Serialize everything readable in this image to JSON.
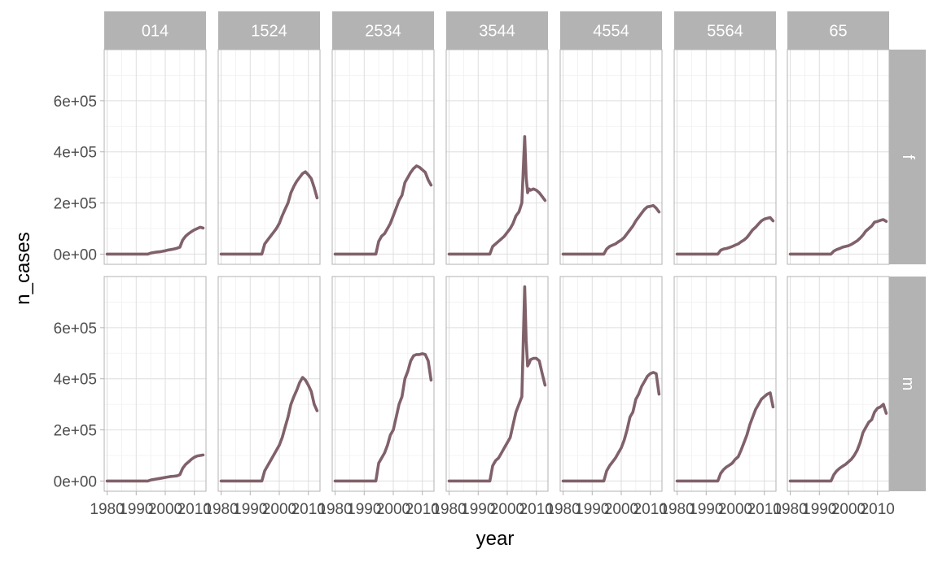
{
  "chart_data": {
    "type": "line",
    "xlabel": "year",
    "ylabel": "n_cases",
    "x_ticks": [
      1980,
      1990,
      2000,
      2010
    ],
    "x_tick_labels": [
      "1980",
      "1990",
      "2000",
      "2010"
    ],
    "y_ticks": [
      0,
      200000,
      400000,
      600000
    ],
    "y_tick_labels": [
      "0e+00",
      "2e+05",
      "4e+05",
      "6e+05"
    ],
    "xlim": [
      1979,
      2014
    ],
    "ylim": [
      -40000,
      800000
    ],
    "grid": true,
    "facet_cols": [
      "014",
      "1524",
      "2534",
      "3544",
      "4554",
      "5564",
      "65"
    ],
    "facet_rows": [
      "f",
      "m"
    ],
    "line_color": "#80616a",
    "strip_color": "#b3b3b3",
    "panels": [
      {
        "sex": "f",
        "age": "014",
        "x": [
          1980,
          1985,
          1994,
          1995,
          1996,
          1997,
          1998,
          1999,
          2000,
          2001,
          2002,
          2003,
          2004,
          2005,
          2006,
          2007,
          2008,
          2009,
          2010,
          2011,
          2012,
          2013
        ],
        "y": [
          0,
          0,
          0,
          4000,
          6000,
          8000,
          9000,
          11000,
          13000,
          16000,
          18000,
          20000,
          23000,
          27000,
          55000,
          70000,
          80000,
          88000,
          95000,
          100000,
          105000,
          102000
        ]
      },
      {
        "sex": "f",
        "age": "1524",
        "x": [
          1980,
          1985,
          1994,
          1995,
          1996,
          1997,
          1998,
          1999,
          2000,
          2001,
          2002,
          2003,
          2004,
          2005,
          2006,
          2007,
          2008,
          2009,
          2010,
          2011,
          2012,
          2013
        ],
        "y": [
          0,
          0,
          0,
          40000,
          55000,
          70000,
          85000,
          100000,
          120000,
          150000,
          175000,
          200000,
          240000,
          265000,
          285000,
          300000,
          315000,
          322000,
          310000,
          295000,
          260000,
          220000
        ]
      },
      {
        "sex": "f",
        "age": "2534",
        "x": [
          1980,
          1985,
          1994,
          1995,
          1996,
          1997,
          1998,
          1999,
          2000,
          2001,
          2002,
          2003,
          2004,
          2005,
          2006,
          2007,
          2008,
          2009,
          2010,
          2011,
          2012,
          2013
        ],
        "y": [
          0,
          0,
          0,
          50000,
          70000,
          80000,
          100000,
          120000,
          150000,
          180000,
          210000,
          230000,
          280000,
          300000,
          320000,
          335000,
          345000,
          340000,
          330000,
          320000,
          290000,
          270000
        ]
      },
      {
        "sex": "f",
        "age": "3544",
        "x": [
          1980,
          1985,
          1994,
          1995,
          1996,
          1997,
          1998,
          1999,
          2000,
          2001,
          2002,
          2003,
          2004,
          2005,
          2006,
          2006.5,
          2007,
          2007.5,
          2008,
          2009,
          2010,
          2011,
          2012,
          2013
        ],
        "y": [
          0,
          0,
          0,
          30000,
          40000,
          50000,
          60000,
          70000,
          85000,
          100000,
          120000,
          150000,
          165000,
          200000,
          460000,
          300000,
          240000,
          255000,
          250000,
          255000,
          250000,
          240000,
          225000,
          210000
        ]
      },
      {
        "sex": "f",
        "age": "4554",
        "x": [
          1980,
          1985,
          1994,
          1995,
          1996,
          1997,
          1998,
          1999,
          2000,
          2001,
          2002,
          2003,
          2004,
          2005,
          2006,
          2007,
          2008,
          2009,
          2010,
          2011,
          2012,
          2013
        ],
        "y": [
          0,
          0,
          0,
          20000,
          30000,
          35000,
          40000,
          48000,
          55000,
          65000,
          80000,
          95000,
          110000,
          130000,
          145000,
          160000,
          175000,
          185000,
          187000,
          190000,
          180000,
          165000
        ]
      },
      {
        "sex": "f",
        "age": "5564",
        "x": [
          1980,
          1985,
          1994,
          1995,
          1996,
          1997,
          1998,
          1999,
          2000,
          2001,
          2002,
          2003,
          2004,
          2005,
          2006,
          2007,
          2008,
          2009,
          2010,
          2011,
          2012,
          2013
        ],
        "y": [
          0,
          0,
          0,
          15000,
          20000,
          22000,
          26000,
          30000,
          35000,
          40000,
          48000,
          55000,
          65000,
          80000,
          95000,
          105000,
          118000,
          130000,
          137000,
          140000,
          143000,
          130000
        ]
      },
      {
        "sex": "f",
        "age": "65",
        "x": [
          1980,
          1985,
          1994,
          1995,
          1996,
          1997,
          1998,
          1999,
          2000,
          2001,
          2002,
          2003,
          2004,
          2005,
          2006,
          2007,
          2008,
          2009,
          2010,
          2011,
          2012,
          2013
        ],
        "y": [
          0,
          0,
          0,
          12000,
          18000,
          22000,
          27000,
          30000,
          33000,
          38000,
          45000,
          52000,
          62000,
          75000,
          90000,
          100000,
          110000,
          125000,
          128000,
          132000,
          135000,
          128000
        ]
      },
      {
        "sex": "m",
        "age": "014",
        "x": [
          1980,
          1985,
          1994,
          1995,
          1996,
          1997,
          1998,
          1999,
          2000,
          2001,
          2002,
          2003,
          2004,
          2005,
          2006,
          2007,
          2008,
          2009,
          2010,
          2011,
          2012,
          2013
        ],
        "y": [
          0,
          0,
          0,
          4000,
          6000,
          8000,
          10000,
          12000,
          14000,
          16000,
          18000,
          19000,
          20000,
          25000,
          50000,
          65000,
          75000,
          85000,
          93000,
          98000,
          100000,
          102000
        ]
      },
      {
        "sex": "m",
        "age": "1524",
        "x": [
          1980,
          1985,
          1994,
          1995,
          1996,
          1997,
          1998,
          1999,
          2000,
          2001,
          2002,
          2003,
          2004,
          2005,
          2006,
          2007,
          2008,
          2009,
          2010,
          2011,
          2012,
          2013
        ],
        "y": [
          0,
          0,
          0,
          40000,
          60000,
          80000,
          100000,
          120000,
          140000,
          170000,
          210000,
          250000,
          300000,
          330000,
          355000,
          385000,
          405000,
          395000,
          375000,
          350000,
          300000,
          275000
        ]
      },
      {
        "sex": "m",
        "age": "2534",
        "x": [
          1980,
          1985,
          1994,
          1995,
          1996,
          1997,
          1998,
          1999,
          2000,
          2001,
          2002,
          2003,
          2004,
          2005,
          2006,
          2007,
          2008,
          2009,
          2010,
          2011,
          2012,
          2013
        ],
        "y": [
          0,
          0,
          0,
          70000,
          90000,
          110000,
          140000,
          180000,
          200000,
          250000,
          300000,
          330000,
          400000,
          430000,
          470000,
          490000,
          495000,
          495000,
          498000,
          495000,
          470000,
          395000
        ]
      },
      {
        "sex": "m",
        "age": "3544",
        "x": [
          1980,
          1985,
          1994,
          1995,
          1996,
          1997,
          1998,
          1999,
          2000,
          2001,
          2002,
          2003,
          2004,
          2005,
          2006,
          2006.5,
          2007,
          2007.5,
          2008,
          2009,
          2010,
          2011,
          2012,
          2013
        ],
        "y": [
          0,
          0,
          0,
          60000,
          80000,
          90000,
          110000,
          130000,
          150000,
          170000,
          220000,
          270000,
          300000,
          330000,
          760000,
          550000,
          450000,
          460000,
          475000,
          480000,
          480000,
          470000,
          420000,
          375000
        ]
      },
      {
        "sex": "m",
        "age": "4554",
        "x": [
          1980,
          1985,
          1994,
          1995,
          1996,
          1997,
          1998,
          1999,
          2000,
          2001,
          2002,
          2003,
          2004,
          2005,
          2006,
          2007,
          2008,
          2009,
          2010,
          2011,
          2012,
          2013
        ],
        "y": [
          0,
          0,
          0,
          40000,
          60000,
          75000,
          90000,
          110000,
          130000,
          160000,
          200000,
          250000,
          270000,
          320000,
          340000,
          370000,
          390000,
          410000,
          420000,
          425000,
          420000,
          340000
        ]
      },
      {
        "sex": "m",
        "age": "5564",
        "x": [
          1980,
          1985,
          1994,
          1995,
          1996,
          1997,
          1998,
          1999,
          2000,
          2001,
          2002,
          2003,
          2004,
          2005,
          2006,
          2007,
          2008,
          2009,
          2010,
          2011,
          2012,
          2013
        ],
        "y": [
          0,
          0,
          0,
          30000,
          45000,
          55000,
          62000,
          70000,
          85000,
          95000,
          120000,
          150000,
          180000,
          220000,
          250000,
          280000,
          300000,
          320000,
          330000,
          340000,
          345000,
          290000
        ]
      },
      {
        "sex": "m",
        "age": "65",
        "x": [
          1980,
          1985,
          1994,
          1995,
          1996,
          1997,
          1998,
          1999,
          2000,
          2001,
          2002,
          2003,
          2004,
          2005,
          2006,
          2007,
          2008,
          2009,
          2010,
          2011,
          2012,
          2013
        ],
        "y": [
          0,
          0,
          0,
          25000,
          40000,
          50000,
          58000,
          65000,
          75000,
          85000,
          100000,
          120000,
          150000,
          190000,
          210000,
          230000,
          240000,
          270000,
          285000,
          290000,
          300000,
          265000
        ]
      }
    ]
  }
}
